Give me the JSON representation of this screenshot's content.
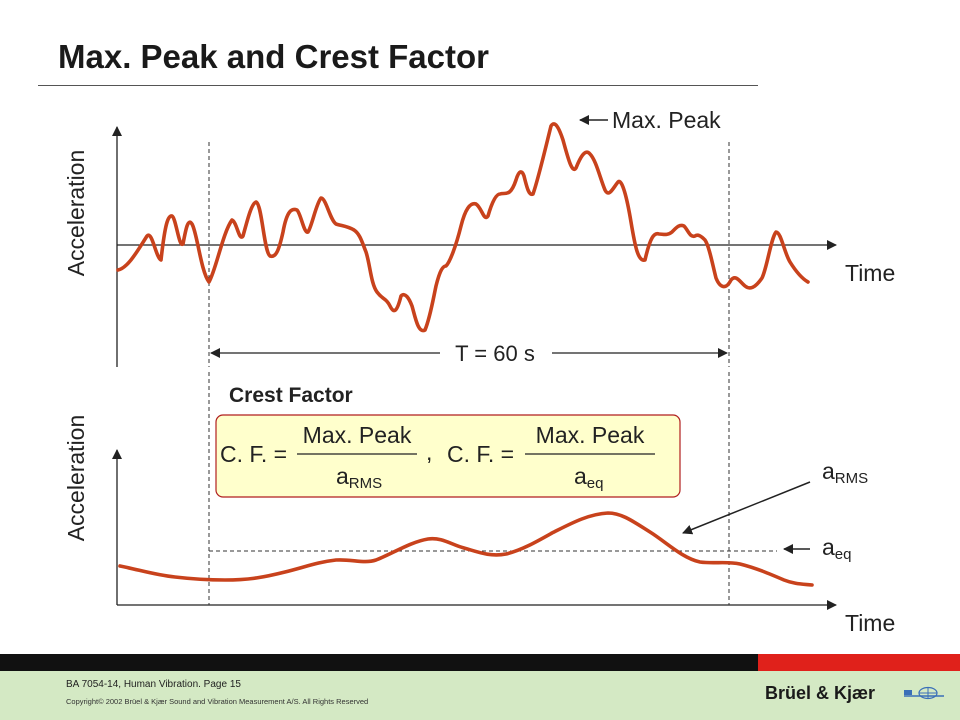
{
  "slide": {
    "title": "Max. Peak and Crest Factor"
  },
  "top_chart": {
    "y_label": "Acceleration",
    "x_label": "Time",
    "max_peak_label": "Max. Peak",
    "duration_label": "T = 60 s"
  },
  "formula_box": {
    "heading": "Crest Factor",
    "lhs": "C. F. =",
    "numerator": "Max. Peak",
    "denominator_1_base": "a",
    "denominator_1_sub": "RMS",
    "separator": ",",
    "denominator_2_base": "a",
    "denominator_2_sub": "eq",
    "fill_color": "#ffffcc",
    "border_color": "#b01f1f"
  },
  "bottom_chart": {
    "y_label": "Acceleration",
    "x_label": "Time",
    "rms_label_base": "a",
    "rms_label_sub": "RMS",
    "eq_label_base": "a",
    "eq_label_sub": "eq"
  },
  "footer": {
    "reference": "BA 7054-14, Human Vibration. Page 15",
    "copyright": "Copyright© 2002 Brüel & Kjær Sound and Vibration Measurement A/S. All Rights Reserved",
    "brand": "Brüel & Kjær"
  },
  "colors": {
    "signal": "#c8421c",
    "axis": "#222222",
    "footer_dark": "#111111",
    "footer_red": "#e0211b",
    "footer_panel": "#d4e9c4"
  }
}
